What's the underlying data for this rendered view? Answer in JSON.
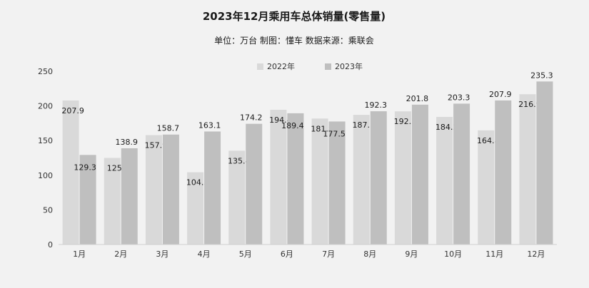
{
  "chart_data": {
    "type": "bar",
    "title": "2023年12月乘用车总体销量(零售量)",
    "subtitle": "单位：万台 制图：懂车  数据来源：乘联会",
    "categories": [
      "1月",
      "2月",
      "3月",
      "4月",
      "5月",
      "6月",
      "7月",
      "8月",
      "9月",
      "10月",
      "11月",
      "12月"
    ],
    "series": [
      {
        "name": "2022年",
        "color": "#d9d9d9",
        "values": [
          207.9,
          125,
          157.9,
          104.3,
          135.4,
          194.4,
          181.8,
          187.1,
          192.2,
          184.2,
          164.8,
          216.9
        ]
      },
      {
        "name": "2023年",
        "color": "#bfbfbf",
        "values": [
          129.3,
          138.9,
          158.7,
          163.1,
          174.2,
          189.4,
          177.5,
          192.3,
          201.8,
          203.3,
          207.9,
          235.3
        ]
      }
    ],
    "ylim": [
      0,
      250
    ],
    "yticks": [
      0,
      50,
      100,
      150,
      200,
      250
    ],
    "grid": false,
    "legend": "top-center"
  }
}
